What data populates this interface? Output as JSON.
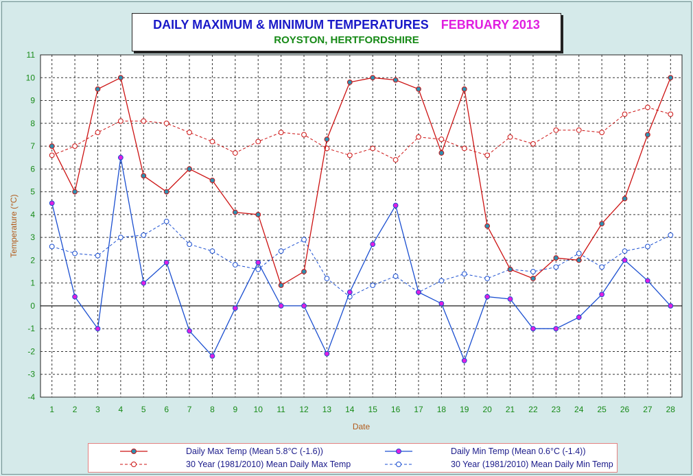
{
  "title": {
    "main": "DAILY MAXIMUM &  MINIMUM  TEMPERATURES",
    "month": "FEBRUARY 2013",
    "subtitle": "ROYSTON, HERTFORDSHIRE"
  },
  "colors": {
    "background": "#d5eaea",
    "plot_background": "#ffffff",
    "axis_text": "#178a17",
    "axis_label": "#b25a1a",
    "max_line": "#cc1111",
    "min_line": "#1a4ed0",
    "marker_fill_max": "#2f8fb0",
    "marker_fill_min": "#e020e0"
  },
  "chart_data": {
    "type": "line",
    "title": "DAILY MAXIMUM &  MINIMUM  TEMPERATURES",
    "xlabel": "Date",
    "ylabel": "Temperature (°C)",
    "ylim": [
      -4,
      11
    ],
    "grid": true,
    "legend_position": "bottom",
    "x": [
      1,
      2,
      3,
      4,
      5,
      6,
      7,
      8,
      9,
      10,
      11,
      12,
      13,
      14,
      15,
      16,
      17,
      18,
      19,
      20,
      21,
      22,
      23,
      24,
      25,
      26,
      27,
      28
    ],
    "yticks": [
      -4,
      -3,
      -2,
      -1,
      0,
      1,
      2,
      3,
      4,
      5,
      6,
      7,
      8,
      9,
      10,
      11
    ],
    "series": [
      {
        "name": "Daily Max Temp (Mean 5.8°C (-1.6))",
        "style": "solid",
        "values": [
          7.0,
          5.0,
          9.5,
          10.0,
          5.7,
          5.0,
          6.0,
          5.5,
          4.1,
          4.0,
          0.9,
          1.5,
          7.3,
          9.8,
          10.0,
          9.9,
          9.5,
          6.7,
          9.5,
          3.5,
          1.6,
          1.2,
          2.1,
          2.0,
          3.6,
          4.7,
          7.5,
          10.0
        ]
      },
      {
        "name": "Daily Min Temp (Mean 0.6°C (-1.4))",
        "style": "solid",
        "values": [
          4.5,
          0.4,
          -1.0,
          6.5,
          1.0,
          1.9,
          -1.1,
          -2.2,
          -0.1,
          1.9,
          0.0,
          0.0,
          -2.1,
          0.6,
          2.7,
          4.4,
          0.6,
          0.1,
          -2.4,
          0.4,
          0.3,
          -1.0,
          -1.0,
          -0.5,
          0.5,
          2.0,
          1.1,
          0.0
        ]
      },
      {
        "name": "30 Year (1981/2010) Mean Daily Max Temp",
        "style": "dashed",
        "values": [
          6.6,
          7.0,
          7.6,
          8.1,
          8.1,
          8.0,
          7.6,
          7.2,
          6.7,
          7.2,
          7.6,
          7.5,
          6.9,
          6.6,
          6.9,
          6.4,
          7.4,
          7.3,
          6.9,
          6.6,
          7.4,
          7.1,
          7.7,
          7.7,
          7.6,
          8.4,
          8.7,
          8.4
        ]
      },
      {
        "name": "30 Year (1981/2010) Mean Daily Min Temp",
        "style": "dashed",
        "values": [
          2.6,
          2.3,
          2.2,
          3.0,
          3.1,
          3.7,
          2.7,
          2.4,
          1.8,
          1.6,
          2.4,
          2.9,
          1.2,
          0.4,
          0.9,
          1.3,
          0.6,
          1.1,
          1.4,
          1.2,
          1.6,
          1.5,
          1.7,
          2.3,
          1.7,
          2.4,
          2.6,
          3.1
        ]
      }
    ]
  }
}
